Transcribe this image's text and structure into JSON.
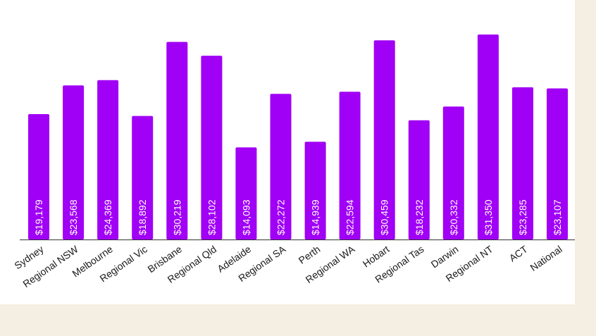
{
  "chart_data": {
    "type": "bar",
    "categories": [
      "Sydney",
      "Regional NSW",
      "Melbourne",
      "Regional Vic",
      "Brisbane",
      "Regional Qld",
      "Adelaide",
      "Regional SA",
      "Perth",
      "Regional WA",
      "Hobart",
      "Regional Tas",
      "Darwin",
      "Regional NT",
      "ACT",
      "National"
    ],
    "values": [
      19179,
      23568,
      24369,
      18892,
      30219,
      28102,
      14093,
      22272,
      14939,
      22594,
      30459,
      18232,
      20332,
      31350,
      23285,
      23107
    ],
    "value_labels": [
      "$19,179",
      "$23,568",
      "$24,369",
      "$18,892",
      "$30,219",
      "$28,102",
      "$14,093",
      "$22,272",
      "$14,939",
      "$22,594",
      "$30,459",
      "$18,232",
      "$20,332",
      "$31,350",
      "$23,285",
      "$23,107"
    ],
    "title": "",
    "xlabel": "",
    "ylabel": "",
    "ylim": [
      0,
      31350
    ],
    "grid": false,
    "legend": "none",
    "bar_color": "#a000f5",
    "axis_color": "#333333",
    "label_color": "#ffffff",
    "tick_label_color": "#1a1a1a"
  }
}
